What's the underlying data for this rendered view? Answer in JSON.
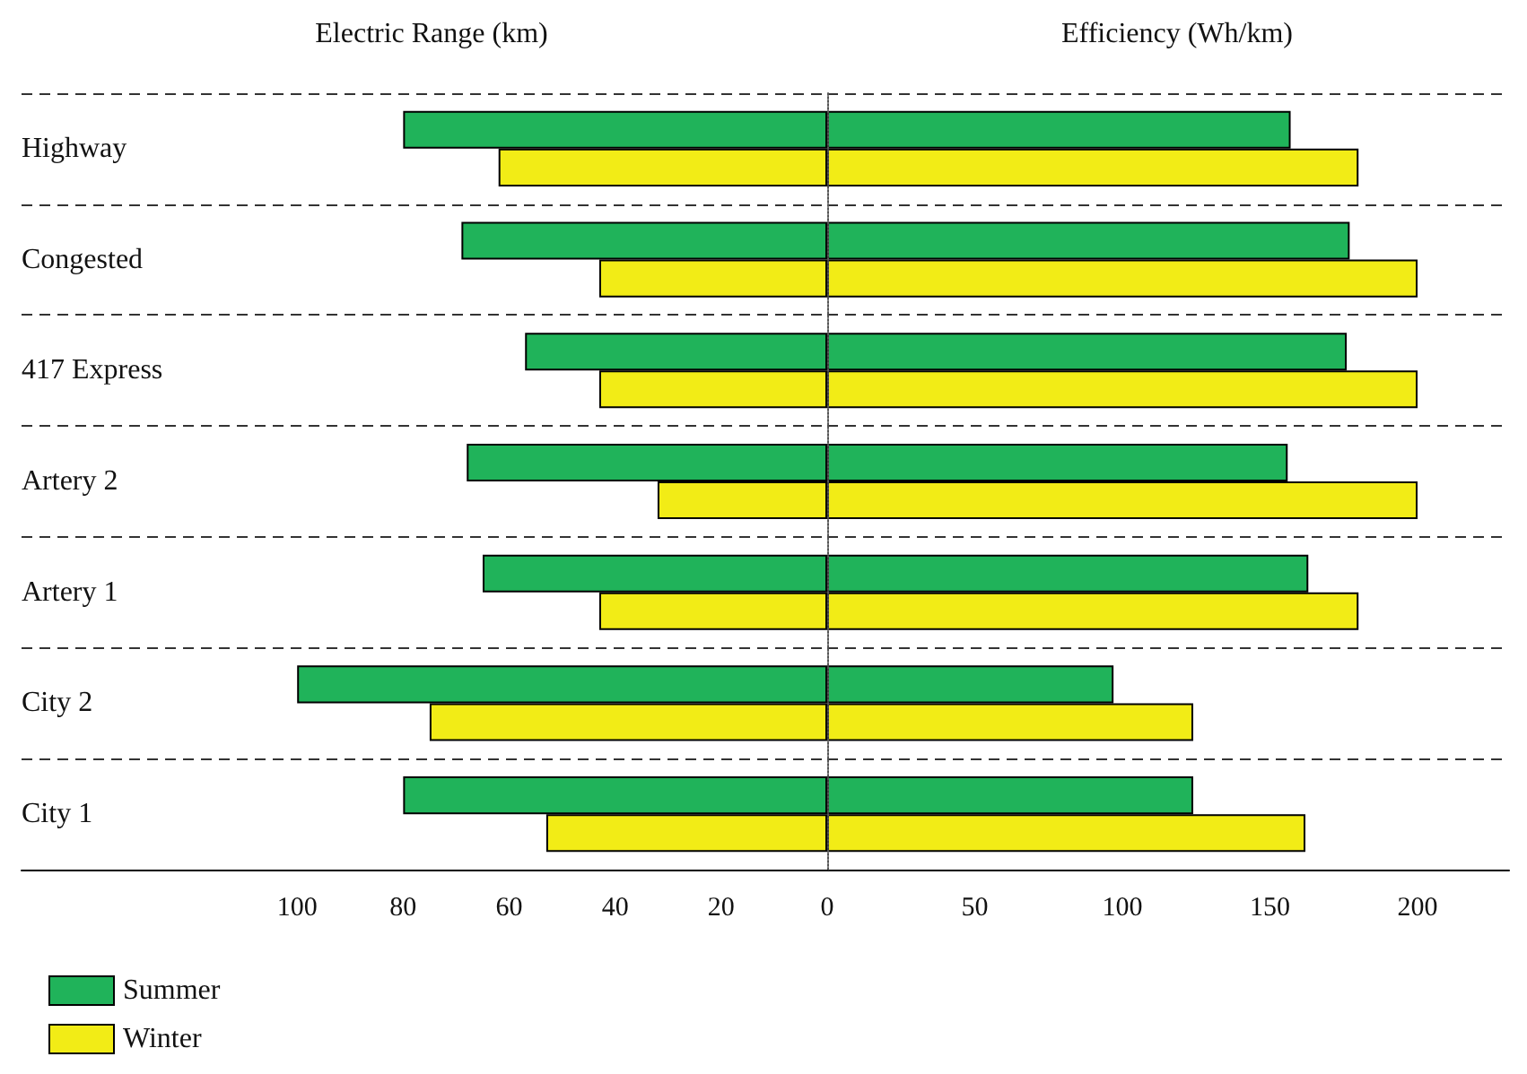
{
  "chart_data": [
    {
      "type": "bar",
      "orientation": "horizontal",
      "xlabel": "Electric Range (km)",
      "categories": [
        "Highway",
        "Congested",
        "417 Express",
        "Artery 2",
        "Artery 1",
        "City 2",
        "City 1"
      ],
      "series": [
        {
          "name": "Summer",
          "color": "#20b35a",
          "values": [
            80,
            69,
            57,
            68,
            65,
            100,
            80
          ]
        },
        {
          "name": "Winter",
          "color": "#f2ec16",
          "values": [
            62,
            43,
            43,
            32,
            43,
            75,
            53
          ]
        }
      ],
      "xlim": [
        152,
        0
      ],
      "xticks": [
        100,
        80,
        60,
        40,
        20,
        0
      ],
      "grid": "y",
      "legend": "bottom left"
    },
    {
      "type": "bar",
      "orientation": "horizontal",
      "xlabel": "Efficiency (Wh/km)",
      "categories": [
        null,
        null,
        null,
        null,
        null,
        null,
        null
      ],
      "series": [
        {
          "color": "#20b35a",
          "values": [
            157,
            177,
            176,
            156,
            163,
            97,
            124
          ]
        },
        {
          "color": "#f2ec16",
          "values": [
            180,
            200,
            200,
            200,
            180,
            124,
            162
          ]
        }
      ],
      "xlim": [
        0,
        231
      ],
      "xticks": [
        50,
        100,
        150,
        200
      ],
      "grid": "y",
      "tick_labels": "x"
    }
  ]
}
